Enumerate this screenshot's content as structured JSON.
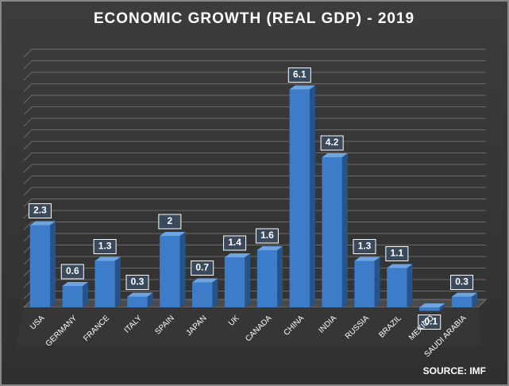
{
  "chart_data": {
    "type": "bar",
    "title": "ECONOMIC GROWTH (REAL GDP) - 2019",
    "categories": [
      "USA",
      "GERMANY",
      "FRANCE",
      "ITALY",
      "SPAIN",
      "JAPAN",
      "UK",
      "CANADA",
      "CHINA",
      "INDIA",
      "RUSSIA",
      "BRAZIL",
      "MEXICO",
      "SAUDI ARABIA"
    ],
    "values": [
      2.3,
      0.6,
      1.3,
      0.3,
      2,
      0.7,
      1.4,
      1.6,
      6.1,
      4.2,
      1.3,
      1.1,
      -0.1,
      0.3
    ],
    "color": "#3d7cc9",
    "ylim": [
      -0.5,
      7
    ],
    "source": "SOURCE: IMF"
  }
}
